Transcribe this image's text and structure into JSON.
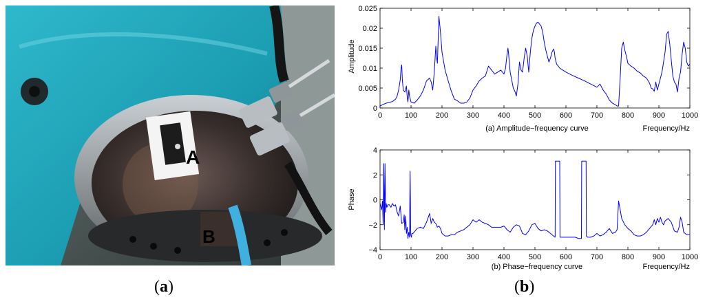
{
  "photo": {
    "label_a": "A",
    "label_b": "B",
    "colors": {
      "housing": "#1a9bb0",
      "metal": "#3a3a3a",
      "cable": "#3fb0e0"
    }
  },
  "captions": {
    "a": {
      "open": "(",
      "letter": "a",
      "close": ")"
    },
    "b": {
      "open": "(",
      "letter": "b",
      "close": ")"
    }
  },
  "chart_data": [
    {
      "type": "line",
      "caption": "(a) Amplitude−frequency curve",
      "xlabel": "Frequency/Hz",
      "ylabel": "Amplitude",
      "xlim": [
        0,
        1000
      ],
      "ylim": [
        0,
        0.025
      ],
      "xticks": [
        0,
        100,
        200,
        300,
        400,
        500,
        600,
        700,
        800,
        900,
        1000
      ],
      "yticks": [
        0,
        0.005,
        0.01,
        0.015,
        0.02,
        0.025
      ],
      "ytick_labels": [
        "0",
        "0.005",
        "0.01",
        "0.015",
        "0.02",
        "0.025"
      ],
      "color": "#0000ff",
      "grid": false,
      "series": [
        {
          "x": [
            0,
            10,
            20,
            30,
            40,
            50,
            55,
            60,
            65,
            68,
            70,
            72,
            75,
            80,
            85,
            88,
            90,
            93,
            95,
            100,
            110,
            120,
            130,
            140,
            150,
            160,
            165,
            170,
            175,
            180,
            183,
            185,
            188,
            190,
            195,
            200,
            210,
            220,
            230,
            240,
            250,
            260,
            270,
            280,
            290,
            300,
            310,
            320,
            330,
            340,
            350,
            360,
            370,
            380,
            390,
            400,
            405,
            410,
            413,
            415,
            420,
            425,
            430,
            435,
            440,
            445,
            450,
            455,
            460,
            465,
            470,
            475,
            480,
            485,
            490,
            495,
            500,
            505,
            510,
            515,
            520,
            525,
            530,
            535,
            540,
            545,
            550,
            555,
            560,
            563,
            565,
            570,
            575,
            580,
            590,
            600,
            620,
            640,
            660,
            680,
            700,
            710,
            720,
            730,
            740,
            750,
            760,
            765,
            770,
            775,
            780,
            785,
            790,
            795,
            800,
            810,
            820,
            830,
            840,
            850,
            860,
            870,
            875,
            880,
            885,
            890,
            895,
            900,
            905,
            910,
            915,
            920,
            925,
            930,
            935,
            940,
            945,
            950,
            955,
            960,
            965,
            970,
            975,
            980,
            985,
            990,
            995,
            1000
          ],
          "y": [
            0.0005,
            0.0009,
            0.0012,
            0.0014,
            0.0016,
            0.0022,
            0.003,
            0.0045,
            0.007,
            0.01,
            0.0108,
            0.007,
            0.0045,
            0.004,
            0.0055,
            0.0025,
            0.0015,
            0.0045,
            0.003,
            0.0015,
            0.0012,
            0.002,
            0.003,
            0.0045,
            0.0068,
            0.0075,
            0.0065,
            0.0045,
            0.009,
            0.0155,
            0.0125,
            0.0112,
            0.018,
            0.023,
            0.019,
            0.014,
            0.0095,
            0.0068,
            0.0042,
            0.0022,
            0.0018,
            0.0012,
            0.0012,
            0.0015,
            0.0025,
            0.0045,
            0.0055,
            0.0068,
            0.0075,
            0.008,
            0.0105,
            0.0095,
            0.0085,
            0.009,
            0.0095,
            0.0085,
            0.01,
            0.0135,
            0.015,
            0.0135,
            0.009,
            0.007,
            0.005,
            0.0042,
            0.003,
            0.006,
            0.0115,
            0.0095,
            0.009,
            0.0125,
            0.015,
            0.013,
            0.009,
            0.014,
            0.0175,
            0.0195,
            0.0205,
            0.0213,
            0.0215,
            0.021,
            0.0205,
            0.019,
            0.0165,
            0.0145,
            0.013,
            0.0115,
            0.0125,
            0.014,
            0.0148,
            0.014,
            0.0125,
            0.011,
            0.0105,
            0.01,
            0.0095,
            0.009,
            0.0082,
            0.0075,
            0.0068,
            0.006,
            0.0052,
            0.006,
            0.0045,
            0.0035,
            0.002,
            0.0012,
            0.0008,
            0.0005,
            0.0005,
            0.0075,
            0.015,
            0.0165,
            0.0145,
            0.013,
            0.0112,
            0.0105,
            0.01,
            0.0092,
            0.0088,
            0.008,
            0.0075,
            0.0062,
            0.005,
            0.0048,
            0.0042,
            0.0065,
            0.0045,
            0.006,
            0.0075,
            0.009,
            0.0115,
            0.014,
            0.0185,
            0.0192,
            0.016,
            0.012,
            0.008,
            0.0065,
            0.006,
            0.004,
            0.0075,
            0.009,
            0.0135,
            0.0165,
            0.015,
            0.0115,
            0.0105,
            0.011
          ]
        }
      ]
    },
    {
      "type": "line",
      "caption": "(b) Phase−frequency curve",
      "xlabel": "Frequency/Hz",
      "ylabel": "Phase",
      "xlim": [
        0,
        1000
      ],
      "ylim": [
        -4,
        4
      ],
      "xticks": [
        0,
        100,
        200,
        300,
        400,
        500,
        600,
        700,
        800,
        900,
        1000
      ],
      "yticks": [
        -4,
        -2,
        0,
        2,
        4
      ],
      "ytick_labels": [
        "−4",
        "−2",
        "0",
        "2",
        "4"
      ],
      "color": "#0000ff",
      "grid": false,
      "series": [
        {
          "x": [
            0,
            5,
            8,
            10,
            12,
            14,
            16,
            18,
            20,
            22,
            25,
            30,
            35,
            40,
            45,
            50,
            55,
            60,
            65,
            70,
            75,
            78,
            80,
            83,
            85,
            88,
            90,
            93,
            95,
            97,
            99,
            101,
            103,
            106,
            110,
            120,
            130,
            140,
            150,
            160,
            165,
            170,
            175,
            180,
            185,
            190,
            195,
            200,
            210,
            220,
            230,
            240,
            250,
            260,
            270,
            280,
            290,
            300,
            310,
            320,
            330,
            340,
            350,
            360,
            370,
            380,
            390,
            400,
            410,
            420,
            430,
            440,
            450,
            460,
            470,
            480,
            490,
            500,
            510,
            520,
            530,
            540,
            550,
            560,
            565,
            566,
            570,
            575,
            580,
            581,
            585,
            590,
            600,
            610,
            620,
            630,
            640,
            650,
            651,
            655,
            660,
            665,
            666,
            670,
            680,
            690,
            700,
            710,
            720,
            730,
            740,
            750,
            760,
            765,
            770,
            775,
            780,
            790,
            800,
            810,
            820,
            830,
            840,
            850,
            860,
            870,
            880,
            885,
            890,
            895,
            900,
            905,
            910,
            915,
            920,
            930,
            940,
            950,
            960,
            965,
            970,
            975,
            980,
            990,
            1000
          ],
          "y": [
            -0.3,
            -0.8,
            -0.1,
            -2.0,
            2.9,
            -2.4,
            2.9,
            -1.0,
            -0.3,
            -0.6,
            -0.4,
            -0.4,
            -0.6,
            -0.3,
            -0.5,
            -0.4,
            -1.0,
            -1.3,
            -0.5,
            -1.9,
            -1.8,
            -1.2,
            -2.4,
            -1.3,
            -2.7,
            -2.2,
            -3.1,
            -2.6,
            -3.0,
            2.3,
            -2.8,
            -3.0,
            -2.7,
            -2.7,
            -2.6,
            -2.3,
            -2.2,
            -2.3,
            -1.8,
            -1.1,
            -1.9,
            -1.5,
            -1.8,
            -1.9,
            -2.2,
            -2.1,
            -2.3,
            -2.7,
            -2.9,
            -2.9,
            -2.8,
            -2.8,
            -2.6,
            -2.5,
            -2.4,
            -2.2,
            -2.0,
            -1.6,
            -1.8,
            -1.6,
            -1.8,
            -1.9,
            -2.0,
            -2.2,
            -2.2,
            -2.2,
            -2.2,
            -2.1,
            -2.4,
            -2.6,
            -2.2,
            -2.0,
            -2.1,
            -2.7,
            -2.8,
            -2.5,
            -2.0,
            -1.9,
            -2.3,
            -2.5,
            -2.4,
            -2.5,
            -2.7,
            -2.9,
            -3.0,
            3.1,
            3.1,
            3.1,
            3.1,
            -3.0,
            -3.0,
            -3.0,
            -3.0,
            -3.0,
            -3.0,
            -3.0,
            -3.1,
            -3.1,
            3.1,
            3.1,
            3.1,
            3.1,
            -2.9,
            -3.0,
            -3.0,
            -2.9,
            -2.7,
            -2.9,
            -2.8,
            -2.6,
            -2.3,
            -2.7,
            -2.6,
            -2.4,
            -0.1,
            -0.8,
            -1.5,
            -2.0,
            -2.3,
            -2.5,
            -2.8,
            -2.9,
            -2.9,
            -2.8,
            -2.6,
            -2.3,
            -2.0,
            -1.6,
            -2.0,
            -1.5,
            -1.8,
            -1.4,
            -1.8,
            -2.0,
            -1.7,
            -1.5,
            -1.8,
            -2.5,
            -2.6,
            -2.2,
            -1.4,
            -1.8,
            -2.6,
            -2.8,
            -2.8
          ]
        }
      ]
    }
  ]
}
